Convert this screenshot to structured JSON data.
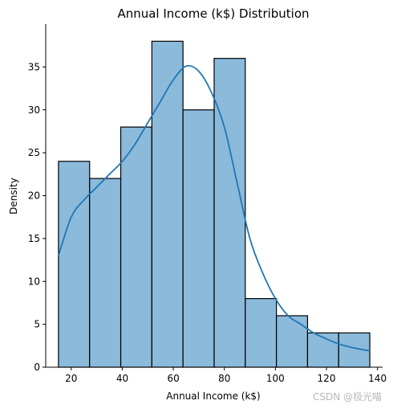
{
  "chart_data": {
    "type": "bar",
    "subtype": "histogram-with-kde",
    "title": "Annual Income (k$) Distribution",
    "xlabel": "Annual Income (k$)",
    "ylabel": "Density",
    "bins": [
      {
        "start": 15.0,
        "end": 27.2,
        "value": 24
      },
      {
        "start": 27.2,
        "end": 39.4,
        "value": 22
      },
      {
        "start": 39.4,
        "end": 51.6,
        "value": 28
      },
      {
        "start": 51.6,
        "end": 63.8,
        "value": 38
      },
      {
        "start": 63.8,
        "end": 76.0,
        "value": 30
      },
      {
        "start": 76.0,
        "end": 88.2,
        "value": 36
      },
      {
        "start": 88.2,
        "end": 100.4,
        "value": 8
      },
      {
        "start": 100.4,
        "end": 112.6,
        "value": 6
      },
      {
        "start": 112.6,
        "end": 124.8,
        "value": 4
      },
      {
        "start": 124.8,
        "end": 137.0,
        "value": 4
      }
    ],
    "kde": {
      "x": [
        15,
        20,
        25,
        30,
        35,
        40,
        45,
        50,
        55,
        60,
        65,
        70,
        75,
        80,
        85,
        90,
        95,
        100,
        105,
        110,
        115,
        120,
        125,
        130,
        137
      ],
      "y": [
        13,
        17.5,
        19.5,
        21,
        22.5,
        24,
        26,
        28.5,
        31,
        33.5,
        35.1,
        34.5,
        32,
        28,
        21.5,
        15,
        11,
        8,
        6,
        5,
        4,
        3.3,
        2.7,
        2.3,
        1.9
      ]
    },
    "xlim": [
      10,
      142
    ],
    "ylim": [
      0,
      40
    ],
    "xticks": [
      20,
      40,
      60,
      80,
      100,
      120,
      140
    ],
    "yticks": [
      0,
      5,
      10,
      15,
      20,
      25,
      30,
      35
    ],
    "grid": false,
    "colors": {
      "bar_fill": "#8bbadb",
      "bar_edge": "#000000",
      "kde_line": "#1f77b4",
      "axis": "#000000",
      "text": "#000000"
    }
  },
  "watermark": "CSDN @极光喵"
}
